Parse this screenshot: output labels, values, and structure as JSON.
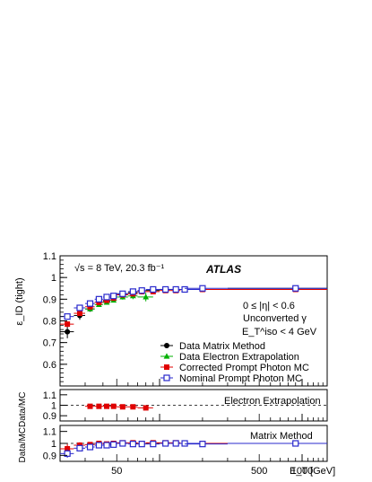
{
  "figure": {
    "ylabel_main": "ε_ID (tight)",
    "ylabel_ratio": "Data/MC",
    "ylabel_ratio2": "Data/MC",
    "xlabel": "E_T [GeV]",
    "energy_label": "√s = 8 TeV, 20.3 fb⁻¹",
    "atlas_label": "ATLAS",
    "cuts": [
      "0 ≤ |η| < 0.6",
      "Unconverted γ",
      "E_T^iso < 4 GeV"
    ],
    "ratio_panel_labels": [
      "Electron Extrapolation",
      "Matrix Method"
    ]
  },
  "chart_data": [
    {
      "type": "scatter",
      "panel": "main",
      "xscale": "log",
      "xlim": [
        20,
        1500
      ],
      "ylim": [
        0.5,
        1.1
      ],
      "yticks": [
        0.6,
        0.7,
        0.8,
        0.9,
        1,
        1.1
      ],
      "ytick_labels": [
        "0.6",
        "0.7",
        "0.8",
        "0.9",
        "1",
        "1.1"
      ],
      "xtick_labels": [
        {
          "x": 50,
          "label": "50"
        },
        {
          "x": 500,
          "label": "500"
        },
        {
          "x": 1000,
          "label": "1000"
        }
      ],
      "legend_position": "bottom-right",
      "series": [
        {
          "name": "Data Matrix Method",
          "color": "#000000",
          "marker": "circle",
          "x": [
            22.5,
            27.5,
            32.5,
            37.5,
            42.5,
            47.5,
            55,
            65,
            75,
            90,
            110,
            130,
            150,
            200,
            900
          ],
          "y": [
            0.75,
            0.825,
            0.855,
            0.885,
            0.89,
            0.905,
            0.925,
            0.93,
            0.935,
            0.94,
            0.945,
            0.945,
            0.945,
            0.945,
            0.95
          ],
          "xerr_lo": [
            2.5,
            2.5,
            2.5,
            2.5,
            2.5,
            2.5,
            5,
            5,
            5,
            10,
            10,
            10,
            10,
            50,
            600
          ],
          "xerr_hi": [
            2.5,
            2.5,
            2.5,
            2.5,
            2.5,
            2.5,
            5,
            5,
            5,
            10,
            10,
            10,
            50,
            100,
            600
          ],
          "yerr": [
            0.03,
            0.02,
            0.012,
            0.01,
            0.01,
            0.01,
            0.008,
            0.008,
            0.008,
            0.008,
            0.008,
            0.008,
            0.008,
            0.008,
            0.01
          ]
        },
        {
          "name": "Data Electron Extrapolation",
          "color": "#00b000",
          "marker": "triangle",
          "x": [
            32.5,
            37.5,
            42.5,
            47.5,
            55,
            65,
            80
          ],
          "y": [
            0.855,
            0.875,
            0.885,
            0.895,
            0.91,
            0.915,
            0.91
          ],
          "xerr_lo": [
            2.5,
            2.5,
            2.5,
            2.5,
            5,
            5,
            10
          ],
          "xerr_hi": [
            2.5,
            2.5,
            2.5,
            2.5,
            5,
            5,
            10
          ],
          "yerr": [
            0.01,
            0.01,
            0.01,
            0.01,
            0.012,
            0.015,
            0.02
          ]
        },
        {
          "name": "Corrected Prompt Photon MC",
          "color": "#e00000",
          "marker": "square",
          "x": [
            22.5,
            27.5,
            32.5,
            37.5,
            42.5,
            47.5,
            55,
            65,
            75,
            90,
            110,
            130,
            150,
            200,
            900
          ],
          "y": [
            0.785,
            0.835,
            0.865,
            0.885,
            0.895,
            0.905,
            0.92,
            0.925,
            0.935,
            0.935,
            0.94,
            0.94,
            0.945,
            0.945,
            0.945
          ],
          "xerr_lo": [
            2.5,
            2.5,
            2.5,
            2.5,
            2.5,
            2.5,
            5,
            5,
            5,
            10,
            10,
            10,
            10,
            50,
            600
          ],
          "xerr_hi": [
            2.5,
            2.5,
            2.5,
            2.5,
            2.5,
            2.5,
            5,
            5,
            5,
            10,
            10,
            10,
            50,
            100,
            600
          ],
          "yerr": [
            0.005,
            0.004,
            0.003,
            0.003,
            0.003,
            0.003,
            0.003,
            0.003,
            0.003,
            0.003,
            0.003,
            0.003,
            0.003,
            0.003,
            0.003
          ]
        },
        {
          "name": "Nominal Prompt Photon MC",
          "color": "#2828cc",
          "marker": "open-square",
          "x": [
            22.5,
            27.5,
            32.5,
            37.5,
            42.5,
            47.5,
            55,
            65,
            75,
            90,
            110,
            130,
            150,
            200,
            900
          ],
          "y": [
            0.82,
            0.86,
            0.88,
            0.9,
            0.91,
            0.915,
            0.925,
            0.935,
            0.94,
            0.945,
            0.945,
            0.945,
            0.945,
            0.95,
            0.95
          ],
          "xerr_lo": [
            2.5,
            2.5,
            2.5,
            2.5,
            2.5,
            2.5,
            5,
            5,
            5,
            10,
            10,
            10,
            10,
            50,
            600
          ],
          "xerr_hi": [
            2.5,
            2.5,
            2.5,
            2.5,
            2.5,
            2.5,
            5,
            5,
            5,
            10,
            10,
            10,
            50,
            100,
            600
          ],
          "yerr": [
            0.004,
            0.003,
            0.003,
            0.003,
            0.003,
            0.003,
            0.003,
            0.003,
            0.003,
            0.003,
            0.003,
            0.003,
            0.003,
            0.003,
            0.003
          ]
        }
      ]
    },
    {
      "type": "scatter",
      "panel": "ratio-electron-extrapolation",
      "xscale": "log",
      "xlim": [
        20,
        1500
      ],
      "ylim": [
        0.85,
        1.15
      ],
      "yticks": [
        0.9,
        1,
        1.1
      ],
      "ytick_labels": [
        "0.9",
        "1",
        "1.1"
      ],
      "reference_line": 1,
      "series": [
        {
          "name": "Electron Extrapolation",
          "color": "#e00000",
          "marker": "square",
          "x": [
            32.5,
            37.5,
            42.5,
            47.5,
            55,
            65,
            80
          ],
          "y": [
            0.99,
            0.99,
            0.99,
            0.99,
            0.985,
            0.985,
            0.975
          ],
          "xerr_lo": [
            2.5,
            2.5,
            2.5,
            2.5,
            5,
            5,
            10
          ],
          "xerr_hi": [
            2.5,
            2.5,
            2.5,
            2.5,
            5,
            5,
            10
          ],
          "yerr": [
            0.012,
            0.012,
            0.012,
            0.012,
            0.014,
            0.016,
            0.022
          ]
        }
      ]
    },
    {
      "type": "scatter",
      "panel": "ratio-matrix-method",
      "xscale": "log",
      "xlim": [
        20,
        1500
      ],
      "ylim": [
        0.85,
        1.15
      ],
      "yticks": [
        0.9,
        1,
        1.1
      ],
      "ytick_labels": [
        "0.9",
        "1",
        "1.1"
      ],
      "reference_line": 1,
      "series": [
        {
          "name": "Matrix Method",
          "color": "#e00000",
          "marker": "square",
          "x": [
            22.5,
            27.5,
            32.5,
            37.5,
            42.5,
            47.5,
            55,
            65,
            75,
            90,
            110,
            130,
            150,
            200,
            900
          ],
          "y": [
            0.955,
            0.985,
            0.99,
            1.0,
            0.995,
            1.0,
            1.005,
            1.005,
            1.0,
            1.005,
            1.005,
            1.005,
            1.0,
            1.0,
            1.0
          ],
          "xerr_lo": [
            2.5,
            2.5,
            2.5,
            2.5,
            2.5,
            2.5,
            5,
            5,
            5,
            10,
            10,
            10,
            10,
            50,
            600
          ],
          "xerr_hi": [
            2.5,
            2.5,
            2.5,
            2.5,
            2.5,
            2.5,
            5,
            5,
            5,
            10,
            10,
            10,
            50,
            100,
            600
          ],
          "yerr": [
            0.04,
            0.025,
            0.014,
            0.012,
            0.012,
            0.012,
            0.01,
            0.01,
            0.01,
            0.01,
            0.01,
            0.01,
            0.01,
            0.01,
            0.012
          ]
        },
        {
          "name": "Matrix Method (nominal)",
          "color": "#2828cc",
          "marker": "open-square",
          "x": [
            22.5,
            27.5,
            32.5,
            37.5,
            42.5,
            47.5,
            55,
            65,
            75,
            90,
            110,
            130,
            150,
            200,
            900
          ],
          "y": [
            0.915,
            0.96,
            0.97,
            0.985,
            0.985,
            0.99,
            1.0,
            0.995,
            0.995,
            0.995,
            1.0,
            1.0,
            1.0,
            0.995,
            1.0
          ],
          "xerr_lo": [
            2.5,
            2.5,
            2.5,
            2.5,
            2.5,
            2.5,
            5,
            5,
            5,
            10,
            10,
            10,
            10,
            50,
            600
          ],
          "xerr_hi": [
            2.5,
            2.5,
            2.5,
            2.5,
            2.5,
            2.5,
            5,
            5,
            5,
            10,
            10,
            10,
            50,
            100,
            600
          ],
          "yerr": [
            0.035,
            0.022,
            0.013,
            0.011,
            0.011,
            0.011,
            0.009,
            0.009,
            0.009,
            0.009,
            0.009,
            0.009,
            0.009,
            0.009,
            0.011
          ]
        }
      ]
    }
  ]
}
